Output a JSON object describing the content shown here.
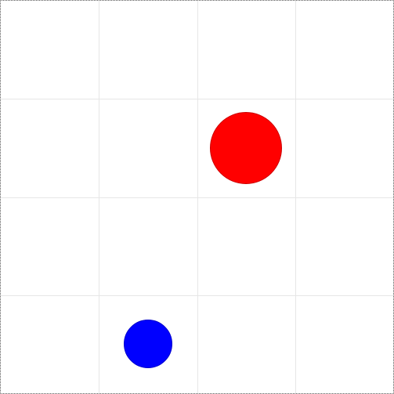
{
  "board": {
    "columns": 4,
    "rows": 4,
    "background_color": "#ffffff",
    "grid_color": "#e6e6e6",
    "border_color": "#555555"
  },
  "pieces": [
    {
      "name": "red-circle",
      "color": "#ff0000",
      "outline": "#cc0000",
      "col": 2.5,
      "row": 1.5,
      "size": "large"
    },
    {
      "name": "blue-circle",
      "color": "#0000ff",
      "outline": "#0000cc",
      "col": 1.5,
      "row": 3.5,
      "size": "small"
    }
  ]
}
